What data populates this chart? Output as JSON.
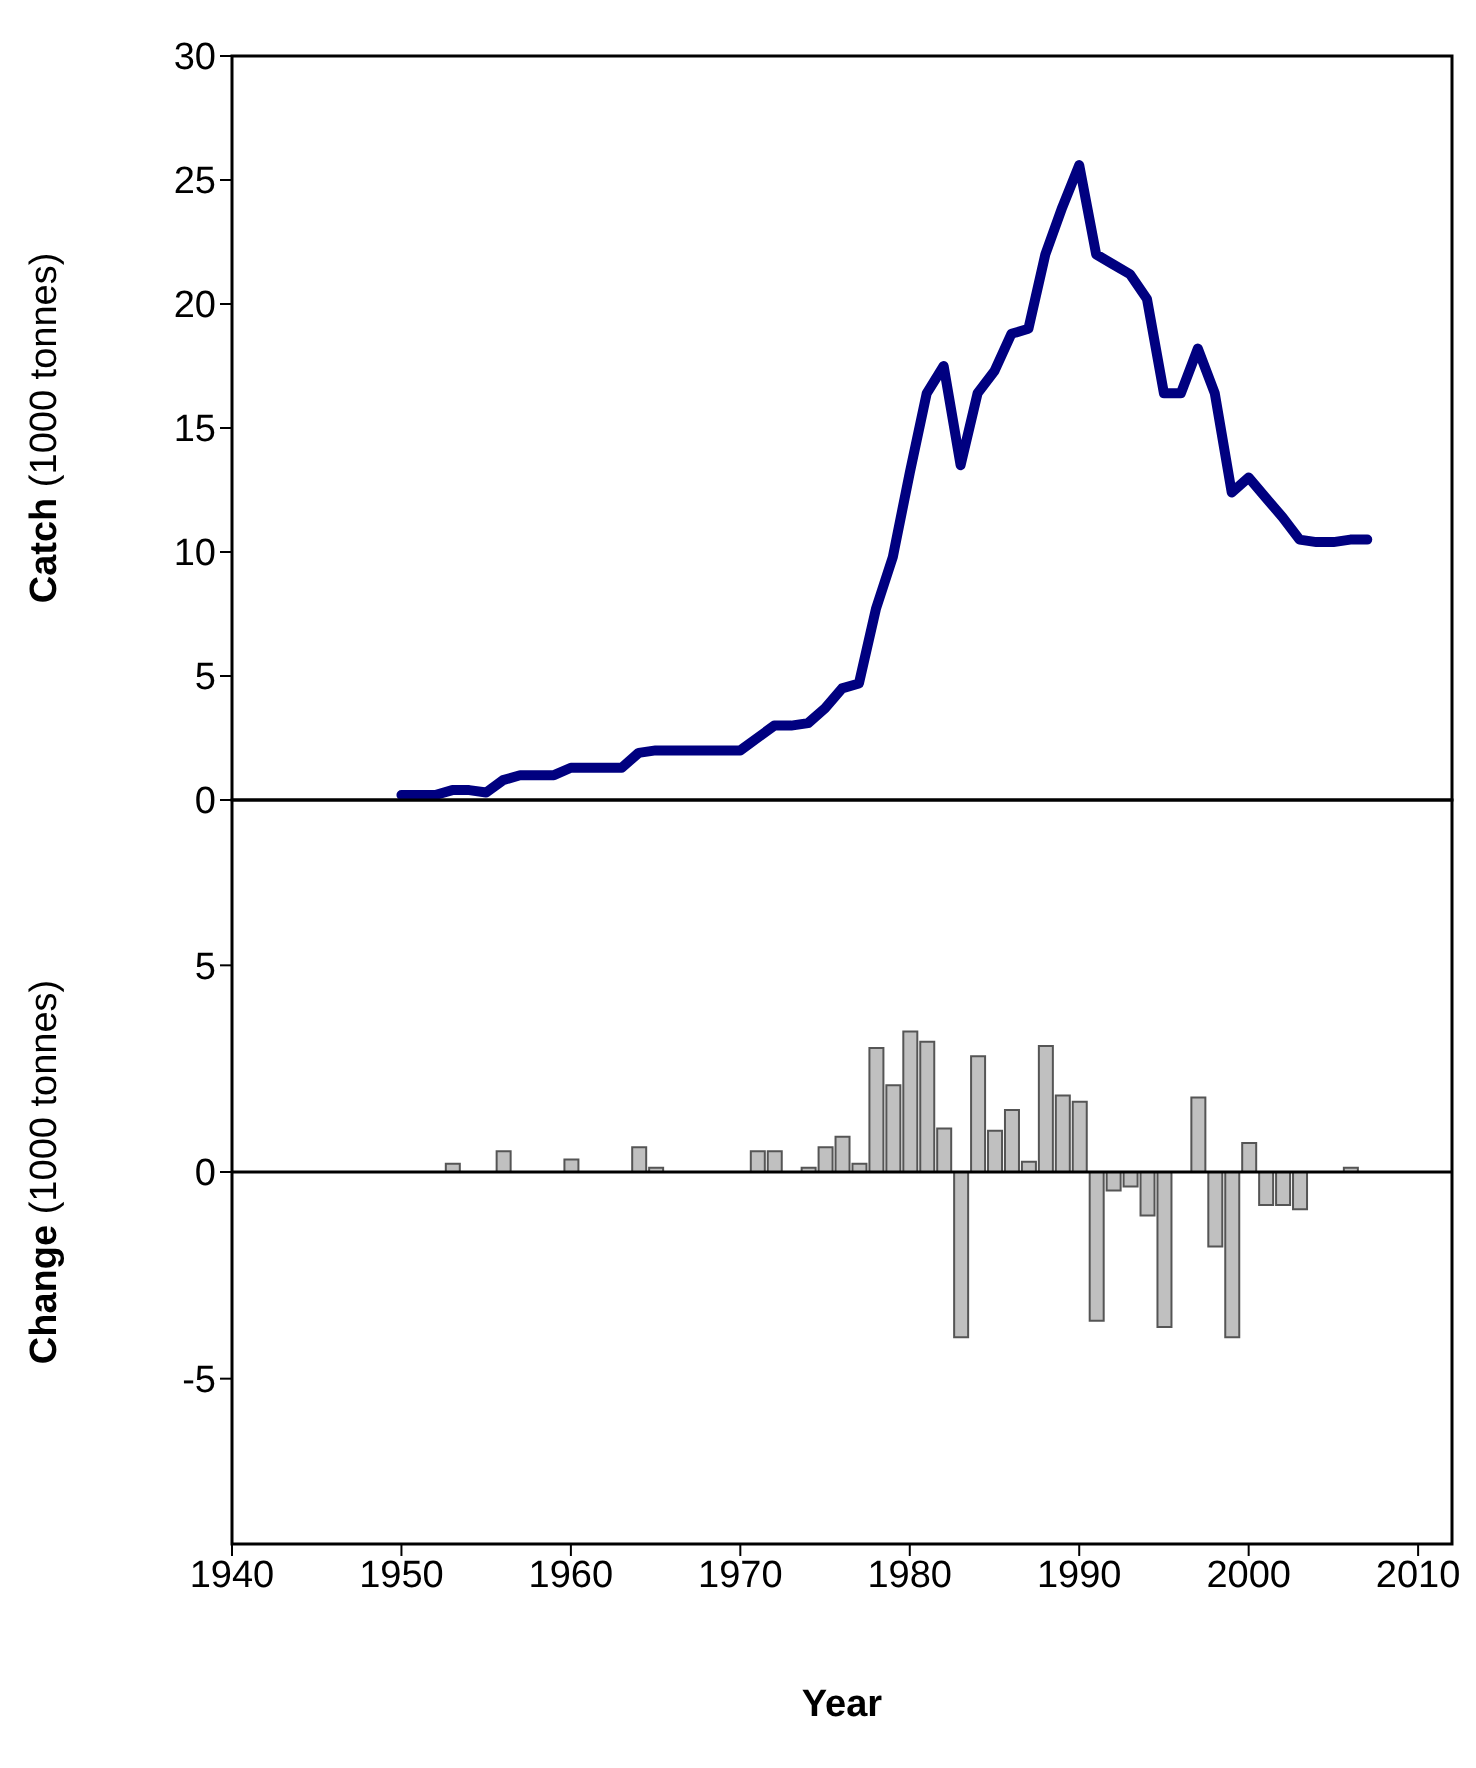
{
  "chart_data": [
    {
      "type": "line",
      "ylabel": "Catch (1000 tonnes)",
      "xlim": [
        1940,
        2012
      ],
      "ylim": [
        0,
        30
      ],
      "yticks": [
        0,
        5,
        10,
        15,
        20,
        25,
        30
      ],
      "tick_labels": "y",
      "series": [
        {
          "color": "#000080",
          "x": [
            1950,
            1951,
            1952,
            1953,
            1954,
            1955,
            1956,
            1957,
            1958,
            1959,
            1960,
            1961,
            1962,
            1963,
            1964,
            1965,
            1966,
            1967,
            1968,
            1969,
            1970,
            1971,
            1972,
            1973,
            1974,
            1975,
            1976,
            1977,
            1978,
            1979,
            1980,
            1981,
            1982,
            1983,
            1984,
            1985,
            1986,
            1987,
            1988,
            1989,
            1990,
            1991,
            1992,
            1993,
            1994,
            1995,
            1996,
            1997,
            1998,
            1999,
            2000,
            2001,
            2002,
            2003,
            2004,
            2005,
            2006,
            2007
          ],
          "values": [
            0.2,
            0.2,
            0.2,
            0.4,
            0.4,
            0.3,
            0.8,
            1.0,
            1.0,
            1.0,
            1.3,
            1.3,
            1.3,
            1.3,
            1.9,
            2.0,
            2.0,
            2.0,
            2.0,
            2.0,
            2.0,
            2.5,
            3.0,
            3.0,
            3.1,
            3.7,
            4.5,
            4.7,
            7.7,
            9.8,
            13.2,
            16.4,
            17.5,
            13.5,
            16.4,
            17.3,
            18.8,
            19.0,
            22.0,
            23.9,
            25.6,
            22.0,
            21.6,
            21.2,
            20.2,
            16.4,
            16.4,
            18.2,
            16.4,
            12.4,
            13.0,
            12.2,
            11.4,
            10.5,
            10.4,
            10.4,
            10.5,
            10.5
          ]
        }
      ]
    },
    {
      "type": "bar",
      "ylabel": "Change (1000 tonnes)",
      "xlabel": "Year",
      "xlim": [
        1940,
        2012
      ],
      "xticks": [
        1940,
        1950,
        1960,
        1970,
        1980,
        1990,
        2000,
        2010
      ],
      "ylim": [
        -9,
        9
      ],
      "yticks": [
        -5,
        0,
        5
      ],
      "series": [
        {
          "color": "#c0c0c0",
          "x": [
            1953,
            1956,
            1960,
            1964,
            1965,
            1971,
            1972,
            1974,
            1975,
            1976,
            1977,
            1978,
            1979,
            1980,
            1981,
            1982,
            1983,
            1984,
            1985,
            1986,
            1987,
            1988,
            1989,
            1990,
            1991,
            1992,
            1993,
            1994,
            1995,
            1997,
            1998,
            1999,
            2000,
            2001,
            2002,
            2003,
            2006
          ],
          "values": [
            0.2,
            0.5,
            0.3,
            0.6,
            0.1,
            0.5,
            0.5,
            0.1,
            0.6,
            0.85,
            0.2,
            3.0,
            2.1,
            3.4,
            3.15,
            1.05,
            -4.0,
            2.8,
            1.0,
            1.5,
            0.25,
            3.05,
            1.85,
            1.7,
            -3.6,
            -0.45,
            -0.35,
            -1.05,
            -3.75,
            1.8,
            -1.8,
            -4.0,
            0.7,
            -0.8,
            -0.8,
            -0.9,
            0.1
          ]
        }
      ]
    }
  ]
}
